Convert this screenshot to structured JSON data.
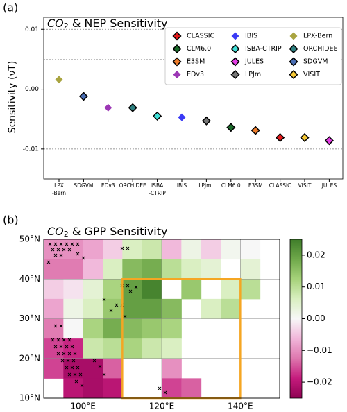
{
  "panel_labels": [
    "(a)",
    "(b)"
  ],
  "chart_data": [
    {
      "type": "scatter",
      "title": [
        "CO",
        "2",
        " & NEP Sensitivity"
      ],
      "y_label": "Sensitivity (νT)",
      "categories": [
        "LPX\n-Bern",
        "SDGVM",
        "EDv3",
        "ORCHIDEE",
        "ISBA\n-CTRIP",
        "IBIS",
        "LPJmL",
        "CLM6.0",
        "E3SM",
        "CLASSIC",
        "VISIT",
        "JULES"
      ],
      "ylim": [
        -0.015,
        0.012
      ],
      "yticks": [
        {
          "value": 0.01,
          "label": "0.01"
        },
        {
          "value": 0,
          "label": "0.00"
        },
        {
          "value": -0.01,
          "label": "-0.01"
        }
      ],
      "minor_grid": [
        0.005,
        -0.005
      ],
      "legend": "upper right",
      "series": [
        {
          "name": "CLASSIC",
          "color": "#e41a1c",
          "edgecolor": "#000000",
          "values": [
            null,
            null,
            null,
            null,
            null,
            null,
            null,
            null,
            null,
            -0.0081,
            null,
            null
          ]
        },
        {
          "name": "CLM6.0",
          "color": "#1b6b2a",
          "edgecolor": "#000000",
          "values": [
            null,
            null,
            null,
            null,
            null,
            null,
            null,
            -0.0064,
            null,
            null,
            null,
            null
          ]
        },
        {
          "name": "E3SM",
          "color": "#ee7d2b",
          "edgecolor": "#000000",
          "values": [
            null,
            null,
            null,
            null,
            null,
            null,
            null,
            null,
            -0.0069,
            null,
            null,
            null
          ]
        },
        {
          "name": "EDv3",
          "color": "#9c37b5",
          "values": [
            null,
            null,
            -0.0031,
            null,
            null,
            null,
            null,
            null,
            null,
            null,
            null,
            null
          ]
        },
        {
          "name": "IBIS",
          "color": "#3a3af5",
          "values": [
            null,
            null,
            null,
            null,
            null,
            -0.0047,
            null,
            null,
            null,
            null,
            null,
            null
          ]
        },
        {
          "name": "ISBA-CTRIP",
          "color": "#40e0d8",
          "edgecolor": "#000000",
          "values": [
            null,
            null,
            null,
            null,
            -0.0045,
            null,
            null,
            null,
            null,
            null,
            null,
            null
          ]
        },
        {
          "name": "JULES",
          "color": "#e63ee6",
          "edgecolor": "#000000",
          "values": [
            null,
            null,
            null,
            null,
            null,
            null,
            null,
            null,
            null,
            null,
            null,
            -0.0086
          ]
        },
        {
          "name": "LPJmL",
          "color": "#777777",
          "edgecolor": "#000000",
          "values": [
            null,
            null,
            null,
            null,
            null,
            null,
            -0.0053,
            null,
            null,
            null,
            null,
            null
          ]
        },
        {
          "name": "LPX-Bern",
          "color": "#a9a440",
          "values": [
            0.0016,
            null,
            null,
            null,
            null,
            null,
            null,
            null,
            null,
            null,
            null,
            null
          ]
        },
        {
          "name": "ORCHIDEE",
          "color": "#2b7f7f",
          "edgecolor": "#000000",
          "values": [
            null,
            null,
            null,
            -0.0031,
            null,
            null,
            null,
            null,
            null,
            null,
            null,
            null
          ]
        },
        {
          "name": "SDGVM",
          "color": "#4a6fb5",
          "edgecolor": "#000000",
          "values": [
            null,
            -0.0012,
            null,
            null,
            null,
            null,
            null,
            null,
            null,
            null,
            null,
            null
          ]
        },
        {
          "name": "VISIT",
          "color": "#f7c936",
          "edgecolor": "#000000",
          "values": [
            null,
            null,
            null,
            null,
            null,
            null,
            null,
            null,
            null,
            null,
            -0.0081,
            null
          ]
        }
      ]
    },
    {
      "type": "heatmap",
      "title": [
        "CO",
        "2",
        " & GPP Sensitivity"
      ],
      "xlim": [
        90,
        150
      ],
      "ylim": [
        10,
        50
      ],
      "xticks": [
        {
          "value": 100,
          "label": "100°E"
        },
        {
          "value": 120,
          "label": "120°E"
        },
        {
          "value": 140,
          "label": "140°E"
        }
      ],
      "yticks": [
        {
          "value": 50,
          "label": "50°N"
        },
        {
          "value": 40,
          "label": "40°N"
        },
        {
          "value": 30,
          "label": "30°N"
        },
        {
          "value": 20,
          "label": "20°N"
        },
        {
          "value": 10,
          "label": "10°N"
        }
      ],
      "values": [
        [
          -0.01,
          -0.01,
          -0.008,
          -0.004,
          0.006,
          0.008,
          -0.006,
          0.002,
          -0.004,
          0.001,
          0.0,
          null
        ],
        [
          -0.012,
          -0.012,
          -0.006,
          0.006,
          0.016,
          0.018,
          0.01,
          0.006,
          0.004,
          null,
          0.004,
          null
        ],
        [
          -0.004,
          -0.002,
          0.004,
          0.012,
          0.02,
          0.024,
          null,
          0.014,
          null,
          0.006,
          0.01,
          null
        ],
        [
          -0.008,
          0.002,
          0.006,
          0.014,
          0.02,
          0.02,
          0.016,
          null,
          0.006,
          0.01,
          null,
          null
        ],
        [
          -0.012,
          0.0,
          0.012,
          0.018,
          0.016,
          0.014,
          0.012,
          null,
          null,
          null,
          null,
          null
        ],
        [
          -0.016,
          -0.018,
          0.008,
          0.01,
          0.012,
          0.008,
          0.006,
          null,
          null,
          null,
          null,
          null
        ],
        [
          -0.016,
          -0.022,
          -0.022,
          -0.014,
          null,
          null,
          -0.01,
          null,
          null,
          null,
          null,
          null
        ],
        [
          null,
          -0.02,
          -0.022,
          -0.02,
          null,
          null,
          -0.016,
          -0.014,
          null,
          null,
          null,
          null
        ]
      ],
      "colormap": [
        "#8e0152",
        "#c51b7d",
        "#de77ae",
        "#f1b6da",
        "#f7f7f7",
        "#d9efc0",
        "#a6d27a",
        "#6fa84a",
        "#3f7d2a"
      ],
      "clim": [
        -0.025,
        0.025
      ],
      "colorbar_ticks": [
        {
          "value": 0.02,
          "label": "0.02"
        },
        {
          "value": 0.01,
          "label": "0.01"
        },
        {
          "value": 0,
          "label": "0.00"
        },
        {
          "value": -0.01,
          "label": "−0.01"
        },
        {
          "value": -0.02,
          "label": "−0.02"
        }
      ],
      "highlight_box": {
        "xlim": [
          110,
          140
        ],
        "ylim": [
          10,
          40
        ],
        "color": "#f5a623"
      }
    }
  ]
}
